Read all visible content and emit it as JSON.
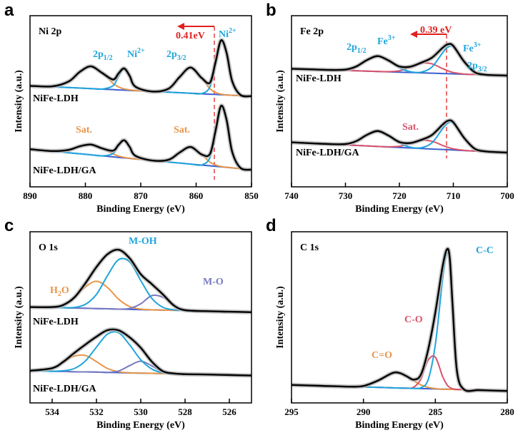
{
  "chart_data": [
    {
      "type": "line",
      "panel_label": "a",
      "title": "Ni 2p",
      "x_label": "Binding Energy (eV)",
      "y_label": "Intensity (a.u.)",
      "x": [
        890,
        886,
        883,
        881,
        879,
        877,
        875,
        874,
        873,
        872,
        871,
        868,
        865,
        863,
        861,
        859,
        857.5,
        856.5,
        855.5,
        854.5,
        853.5,
        852,
        850
      ],
      "xlim": [
        890,
        850
      ],
      "xticks": [
        890,
        880,
        870,
        860,
        850
      ],
      "ylim": [
        0,
        100
      ],
      "series": [
        {
          "color": "#3b5fcf",
          "values": [
            59,
            58.4,
            58,
            57.7,
            57.4,
            57.1,
            56.8,
            56.6,
            56.5,
            56.3,
            56.2,
            55.7,
            55.3,
            55,
            54.7,
            54.4,
            54.1,
            54,
            53.8,
            53.7,
            53.5,
            53.3,
            53
          ]
        },
        {
          "color": "#e8954a",
          "values": [
            59,
            58.7,
            61.6,
            67.2,
            70.4,
            66.6,
            60.4,
            58.4,
            57.2,
            56.6,
            56.3,
            55.7,
            57.3,
            64.1,
            69.7,
            63.5,
            57.3,
            55.2,
            54.1,
            53.7,
            53.5,
            53.3,
            53
          ]
        },
        {
          "color": "#1fa5dc",
          "values": [
            59,
            58.4,
            58,
            57.7,
            57.4,
            57.1,
            59.1,
            64.5,
            68.5,
            64.2,
            58.5,
            55.7,
            55.3,
            55,
            54.7,
            54.5,
            58.4,
            71.6,
            85.3,
            78.3,
            61.9,
            53.7,
            53
          ]
        },
        {
          "color": "#000000",
          "values": [
            59,
            58.7,
            61.6,
            67.2,
            70.4,
            66.6,
            62.7,
            66.3,
            69.2,
            64.8,
            58.6,
            55.7,
            57.3,
            64.1,
            69.7,
            63.6,
            60.9,
            72.8,
            85.6,
            78.3,
            61.9,
            53.7,
            53
          ]
        },
        {
          "color": "#3b5fcf",
          "values": [
            22,
            20.8,
            19.9,
            19.3,
            18.7,
            18.1,
            17.5,
            17.2,
            16.9,
            16.6,
            16.3,
            15.4,
            14.5,
            13.9,
            13.3,
            12.7,
            12.3,
            12,
            11.7,
            11.4,
            11.1,
            10.6,
            10
          ]
        },
        {
          "color": "#e8954a",
          "values": [
            22,
            20.9,
            21.6,
            23.7,
            24.7,
            22.5,
            19.2,
            18,
            17.2,
            16.7,
            16.3,
            15.4,
            15.8,
            20,
            23.3,
            18.8,
            14.4,
            12.8,
            11.9,
            11.4,
            11.1,
            10.6,
            10
          ]
        },
        {
          "color": "#1fa5dc",
          "values": [
            22,
            20.8,
            19.9,
            19.3,
            18.7,
            18.1,
            19.4,
            23.8,
            26.9,
            23.2,
            18.2,
            15.4,
            14.5,
            13.9,
            13.3,
            12.8,
            17.1,
            31.8,
            47.1,
            39.1,
            20.6,
            11.1,
            10
          ]
        },
        {
          "color": "#000000",
          "values": [
            22,
            20.9,
            21.6,
            23.7,
            24.7,
            22.5,
            21.1,
            24.6,
            27.2,
            23.3,
            18.2,
            15.4,
            15.8,
            20,
            23.3,
            18.9,
            19.2,
            32.6,
            47.3,
            39.1,
            20.6,
            11.1,
            10
          ]
        }
      ],
      "sample_labels": [
        "NiFe-LDH",
        "NiFe-LDH/GA"
      ],
      "annotations": [
        {
          "text": "2p",
          "sub": "1/2",
          "color": "#1fa5dc"
        },
        {
          "text": "Ni",
          "sup": "2+",
          "color": "#1fa5dc"
        },
        {
          "text": "2p",
          "sub": "3/2",
          "color": "#1fa5dc"
        },
        {
          "text": "Ni",
          "sup": "2+",
          "color": "#1fa5dc"
        },
        {
          "text": "0.41eV",
          "color": "#e02020"
        },
        {
          "text": "Sat.",
          "color": "#e8954a"
        },
        {
          "text": "Sat.",
          "color": "#e8954a"
        }
      ]
    },
    {
      "type": "line",
      "panel_label": "b",
      "title": "Fe 2p",
      "x_label": "Binding Energy (eV)",
      "y_label": "Intensity (a.u.)",
      "x": [
        740,
        736,
        733,
        730,
        728,
        726,
        724,
        722,
        720,
        718,
        716,
        714,
        712,
        711,
        710,
        708,
        706,
        704,
        702,
        700
      ],
      "xlim": [
        740,
        700
      ],
      "xticks": [
        740,
        730,
        720,
        710,
        700
      ],
      "ylim": [
        0,
        100
      ],
      "series": [
        {
          "color": "#3b5fcf",
          "values": [
            69,
            68.6,
            68.3,
            68,
            67.8,
            67.6,
            67.4,
            67.2,
            67,
            66.8,
            66.6,
            66.4,
            66.2,
            66.1,
            66,
            65.8,
            65.6,
            65.4,
            65.2,
            65
          ]
        },
        {
          "color": "#d9536a",
          "values": [
            69,
            68.6,
            68.3,
            68,
            67.8,
            67.6,
            67.4,
            67.3,
            67.8,
            69.7,
            72.1,
            71.9,
            69.1,
            67.8,
            66.8,
            65.9,
            65.6,
            65.4,
            65.2,
            65
          ]
        },
        {
          "color": "#1fa5dc",
          "values": [
            69,
            68.6,
            68.3,
            68.5,
            70.3,
            74.1,
            76.4,
            73.7,
            69.5,
            67.3,
            67,
            69.9,
            78.3,
            81.6,
            81.5,
            73.1,
            66.9,
            65.5,
            65.2,
            65
          ]
        },
        {
          "color": "#000000",
          "values": [
            69,
            68.6,
            68.3,
            68.5,
            70.3,
            74.1,
            76.4,
            73.8,
            70.3,
            70.2,
            72.5,
            75.4,
            81.2,
            83.3,
            82.3,
            73.2,
            66.9,
            65.5,
            65.2,
            65
          ]
        },
        {
          "color": "#3b5fcf",
          "values": [
            26,
            25.4,
            25,
            24.5,
            24.2,
            23.9,
            23.6,
            23.3,
            23,
            22.7,
            22.4,
            22.1,
            21.8,
            21.7,
            21.5,
            21.2,
            20.9,
            20.6,
            20.3,
            20
          ]
        },
        {
          "color": "#d9536a",
          "values": [
            26,
            25.4,
            25,
            24.5,
            24.2,
            23.9,
            23.6,
            23.4,
            23.7,
            25.1,
            27,
            26.7,
            24.2,
            23.1,
            22.2,
            21.3,
            20.9,
            20.6,
            20.3,
            20
          ]
        },
        {
          "color": "#1fa5dc",
          "values": [
            26,
            25.4,
            25,
            25,
            26.7,
            30.4,
            32.6,
            29.8,
            25.5,
            23.2,
            22.8,
            25.6,
            33.9,
            37.2,
            37,
            28.5,
            22.2,
            20.7,
            20.3,
            20
          ]
        },
        {
          "color": "#000000",
          "values": [
            26,
            25.4,
            25,
            25,
            26.7,
            30.4,
            32.6,
            29.9,
            26.2,
            25.6,
            27.4,
            30.2,
            36.3,
            38.6,
            37.7,
            28.6,
            22.2,
            20.7,
            20.3,
            20
          ]
        }
      ],
      "sample_labels": [
        "NiFe-LDH",
        "NiFe-LDH/GA"
      ],
      "annotations": [
        {
          "text": "2p",
          "sub": "1/2",
          "color": "#1fa5dc"
        },
        {
          "text": "Fe",
          "sup": "3+",
          "color": "#1fa5dc"
        },
        {
          "text": "0.39 eV",
          "color": "#e02020"
        },
        {
          "text": "Fe",
          "sup": "3+",
          "color": "#1fa5dc"
        },
        {
          "text": "2p",
          "sub": "3/2",
          "color": "#1fa5dc"
        },
        {
          "text": "Sat.",
          "color": "#d9536a"
        }
      ]
    },
    {
      "type": "line",
      "panel_label": "c",
      "title": "O 1s",
      "x_label": "Binding Energy (eV)",
      "y_label": "Intensity (a.u.)",
      "x": [
        535,
        534,
        533.5,
        533,
        532.5,
        532,
        531.5,
        531,
        530.5,
        530,
        529.5,
        529,
        528.5,
        528,
        527,
        526,
        525
      ],
      "xlim": [
        535,
        525
      ],
      "xticks": [
        534,
        532,
        530,
        528,
        526
      ],
      "ylim": [
        0,
        100
      ],
      "series": [
        {
          "color": "#3b5fcf",
          "values": [
            56,
            55.7,
            55.6,
            55.4,
            55.3,
            55.1,
            55,
            54.8,
            54.7,
            54.5,
            54.4,
            54.2,
            54.1,
            53.9,
            53.6,
            53.3,
            53
          ]
        },
        {
          "color": "#e8954a",
          "values": [
            56,
            56,
            57.2,
            61.2,
            67.7,
            71.1,
            67.4,
            60.6,
            56.3,
            54.8,
            54.4,
            54.2,
            54.1,
            53.9,
            53.6,
            53.3,
            53
          ]
        },
        {
          "color": "#7678c0",
          "values": [
            56,
            55.7,
            55.6,
            55.4,
            55.3,
            55.1,
            55,
            54.8,
            55.2,
            57.9,
            62.7,
            61.7,
            56.6,
            54.2,
            53.6,
            53.3,
            53
          ]
        },
        {
          "color": "#1fa5dc",
          "values": [
            56,
            55.7,
            55.6,
            55.8,
            57.6,
            63.4,
            74.4,
            83.7,
            82.4,
            71.5,
            61.1,
            55.9,
            54.4,
            53.9,
            53.6,
            53.3,
            53
          ]
        },
        {
          "color": "#000000",
          "values": [
            56,
            56,
            57.2,
            61.6,
            69.9,
            79.4,
            86.9,
            89.5,
            84.5,
            75.2,
            69.4,
            63.4,
            56.9,
            54.2,
            53.6,
            53.3,
            53
          ]
        },
        {
          "color": "#3b5fcf",
          "values": [
            18.8,
            18.5,
            18.4,
            18.2,
            18.1,
            18,
            17.8,
            17.7,
            17.5,
            17.4,
            17.3,
            17.1,
            17,
            16.8,
            16.6,
            16.3,
            16
          ]
        },
        {
          "color": "#e8954a",
          "values": [
            18.8,
            20.3,
            23.6,
            27.3,
            27.7,
            24.1,
            20.1,
            18.2,
            17.6,
            17.4,
            17.3,
            17.1,
            17,
            16.8,
            16.6,
            16.3,
            16
          ]
        },
        {
          "color": "#7678c0",
          "values": [
            18.8,
            18.5,
            18.4,
            18.2,
            18.1,
            18,
            17.8,
            18.6,
            21.8,
            24.4,
            21.6,
            18,
            17.1,
            16.8,
            16.6,
            16.3,
            16
          ]
        },
        {
          "color": "#1fa5dc",
          "values": [
            18.8,
            18.5,
            18.8,
            20.1,
            24.5,
            32.6,
            40.2,
            41,
            33.9,
            25.2,
            19.8,
            17.6,
            17.1,
            16.8,
            16.6,
            16.3,
            16
          ]
        },
        {
          "color": "#000000",
          "values": [
            18.8,
            20.3,
            24,
            29.2,
            34.1,
            38.7,
            42.5,
            42.4,
            38.3,
            32.2,
            24.1,
            18.5,
            17.2,
            16.8,
            16.6,
            16.3,
            16
          ]
        }
      ],
      "sample_labels": [
        "NiFe-LDH",
        "NiFe-LDH/GA"
      ],
      "annotations": [
        {
          "text": "H",
          "sub": "2",
          "tail": "O",
          "color": "#e8954a"
        },
        {
          "text": "M-OH",
          "color": "#1fa5dc"
        },
        {
          "text": "M-O",
          "color": "#7678c0"
        }
      ]
    },
    {
      "type": "line",
      "panel_label": "d",
      "title": "C 1s",
      "x_label": "Binding Energy (eV)",
      "y_label": "Intensity (a.u.)",
      "x": [
        295,
        293,
        291,
        290,
        289,
        288,
        287.5,
        287,
        286.5,
        286,
        285.5,
        285,
        284.5,
        284.2,
        284,
        283.8,
        283.5,
        283,
        282,
        281,
        280
      ],
      "xlim": [
        295,
        280
      ],
      "xticks": [
        295,
        290,
        285,
        280
      ],
      "ylim": [
        0,
        100
      ],
      "series": [
        {
          "color": "#3b5fcf",
          "values": [
            10.5,
            10,
            9.5,
            9.3,
            9.1,
            8.8,
            8.7,
            8.6,
            8.5,
            8.4,
            8.3,
            8.2,
            8,
            8,
            7.9,
            7.9,
            7.8,
            7.7,
            7.5,
            7.2,
            7
          ]
        },
        {
          "color": "#e8954a",
          "values": [
            10.5,
            10,
            9.5,
            9.9,
            13,
            17.4,
            17.5,
            15.6,
            12.9,
            10.5,
            9.1,
            8.4,
            8,
            8,
            7.9,
            7.9,
            7.8,
            7.7,
            7.5,
            7.2,
            7
          ]
        },
        {
          "color": "#d9536a",
          "values": [
            10.5,
            10,
            9.5,
            9.3,
            9.1,
            8.8,
            8.7,
            8.6,
            9.2,
            14,
            25,
            26.7,
            15.5,
            10.7,
            9,
            8.3,
            7.9,
            7.7,
            7.5,
            7.2,
            7
          ]
        },
        {
          "color": "#1fa5dc",
          "values": [
            10.5,
            10,
            9.5,
            9.3,
            9.1,
            8.8,
            8.7,
            8.6,
            8.5,
            8.9,
            13.6,
            34.2,
            72,
            87,
            83.6,
            56.4,
            18.6,
            7.8,
            7.5,
            7.2,
            7
          ]
        },
        {
          "color": "#000000",
          "values": [
            10.5,
            10,
            9.5,
            9.9,
            13,
            17.4,
            17.5,
            15.6,
            13.6,
            16.6,
            31.1,
            52.9,
            79.5,
            89.7,
            84.7,
            56.8,
            18.7,
            7.8,
            7.5,
            7.2,
            7
          ]
        }
      ],
      "annotations": [
        {
          "text": "C-C",
          "color": "#1fa5dc"
        },
        {
          "text": "C-O",
          "color": "#d9536a"
        },
        {
          "text": "C=O",
          "color": "#e8954a"
        }
      ]
    }
  ]
}
